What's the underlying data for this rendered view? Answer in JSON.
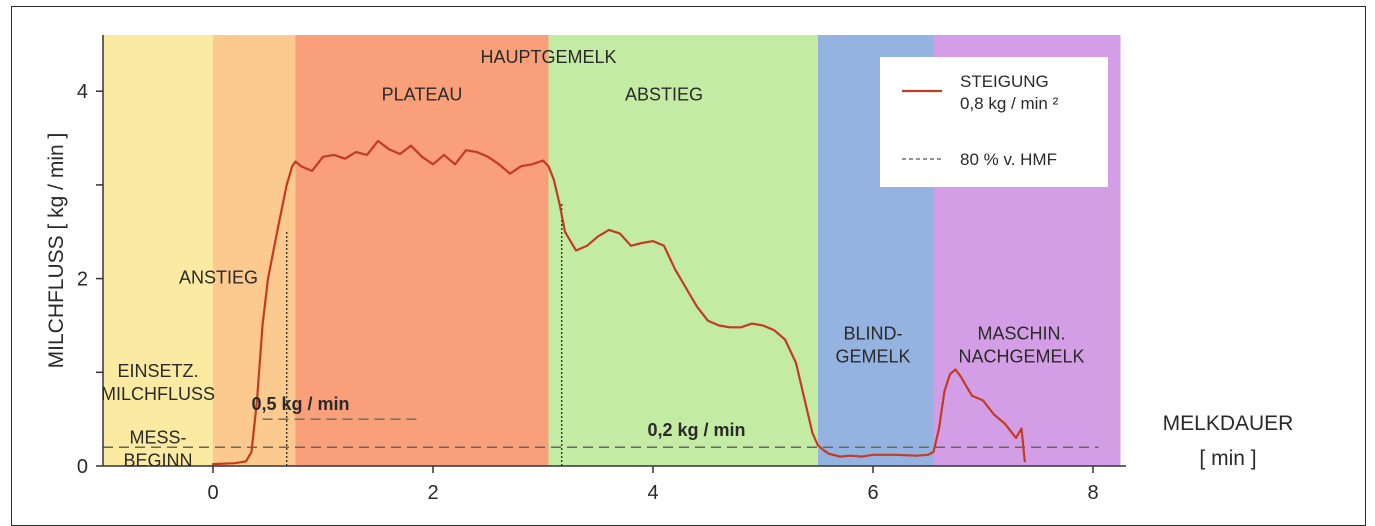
{
  "chart_data": {
    "type": "line",
    "xlabel": [
      "MELKDAUER",
      "[ min ]"
    ],
    "ylabel": "MILCHFLUSS [ kg / min ]",
    "xlim": [
      -1,
      8.3
    ],
    "ylim": [
      0,
      4.6
    ],
    "x_ticks": [
      0,
      2,
      4,
      6,
      8
    ],
    "x_tick_labels": [
      "0",
      "2",
      "4",
      "6",
      "8"
    ],
    "y_ticks": [
      0,
      1,
      2,
      3,
      4
    ],
    "y_tick_labels": [
      "0",
      "",
      "2",
      "",
      "4"
    ],
    "grid": false,
    "legend_position": "top-right",
    "legend": [
      {
        "style": "solid",
        "color": "#c23b22",
        "label_lines": [
          "STEIGUNG",
          "0,8 kg / min ²"
        ]
      },
      {
        "style": "dashed",
        "color": "#555555",
        "label_lines": [
          "80 % v. HMF"
        ]
      }
    ],
    "phases": [
      {
        "x0": -1.0,
        "x1": 0.0,
        "color": "#fbeaa2",
        "label_lines": []
      },
      {
        "x0": 0.0,
        "x1": 0.75,
        "color": "#fcc98e",
        "label_lines": [
          "ANSTIEG"
        ],
        "label_x": 0.05,
        "label_y": 1.95
      },
      {
        "x0": 0.75,
        "x1": 3.05,
        "color": "#f9a07a",
        "label_lines": [
          "PLATEAU"
        ],
        "label_x": 1.9,
        "label_y": 3.9
      },
      {
        "x0": 3.05,
        "x1": 5.5,
        "color": "#c3eba3",
        "label_lines": [
          "ABSTIEG"
        ],
        "label_x": 4.1,
        "label_y": 3.9
      },
      {
        "x0": 5.5,
        "x1": 6.55,
        "color": "#94b3e0",
        "label_lines": [
          "BLIND-",
          "GEMELK"
        ],
        "label_x": 6.0,
        "label_y": 1.35
      },
      {
        "x0": 6.55,
        "x1": 8.25,
        "color": "#d49ee6",
        "label_lines": [
          "MASCHIN.",
          "NACHGEMELK"
        ],
        "label_x": 7.35,
        "label_y": 1.35
      }
    ],
    "annotations": [
      {
        "lines": [
          "HAUPTGEMELK"
        ],
        "x": 3.05,
        "y": 4.3,
        "anchor": "middle",
        "bold": false
      },
      {
        "lines": [
          "EINSETZ.",
          "MILCHFLUSS"
        ],
        "x": -0.5,
        "y": 0.95,
        "anchor": "middle",
        "bold": false
      },
      {
        "lines": [
          "MESS-",
          "BEGINN"
        ],
        "x": -0.5,
        "y": 0.24,
        "anchor": "middle",
        "bold": false
      },
      {
        "lines": [
          "0,5 kg / min"
        ],
        "x": 0.35,
        "y": 0.6,
        "anchor": "start",
        "bold": true
      },
      {
        "lines": [
          "0,2 kg / min"
        ],
        "x": 3.95,
        "y": 0.32,
        "anchor": "start",
        "bold": true
      }
    ],
    "reference_lines": [
      {
        "orientation": "horizontal",
        "y": 0.5,
        "x0": 0.45,
        "x1": 1.9,
        "style": "dashed"
      },
      {
        "orientation": "horizontal",
        "y": 0.2,
        "x0": -1.0,
        "x1": 8.05,
        "style": "dashed"
      },
      {
        "orientation": "vertical",
        "x": 0.67,
        "y0": 0.0,
        "y1": 2.5,
        "style": "dotted"
      },
      {
        "orientation": "vertical",
        "x": 3.17,
        "y0": 0.0,
        "y1": 2.8,
        "style": "dotted"
      }
    ],
    "series": [
      {
        "color": "#c23b22",
        "x": [
          0.0,
          0.2,
          0.3,
          0.35,
          0.4,
          0.45,
          0.5,
          0.6,
          0.67,
          0.72,
          0.75,
          0.8,
          0.9,
          1.0,
          1.1,
          1.2,
          1.3,
          1.4,
          1.5,
          1.6,
          1.7,
          1.8,
          1.9,
          2.0,
          2.1,
          2.2,
          2.3,
          2.4,
          2.5,
          2.6,
          2.7,
          2.8,
          2.9,
          3.0,
          3.05,
          3.1,
          3.15,
          3.2,
          3.3,
          3.4,
          3.5,
          3.6,
          3.7,
          3.8,
          3.9,
          4.0,
          4.1,
          4.2,
          4.3,
          4.4,
          4.5,
          4.6,
          4.7,
          4.8,
          4.9,
          5.0,
          5.1,
          5.2,
          5.3,
          5.4,
          5.45,
          5.5,
          5.55,
          5.6,
          5.7,
          5.8,
          5.9,
          6.0,
          6.2,
          6.4,
          6.5,
          6.55,
          6.6,
          6.65,
          6.7,
          6.75,
          6.8,
          6.85,
          6.9,
          7.0,
          7.1,
          7.2,
          7.3,
          7.35,
          7.38
        ],
        "y": [
          0.02,
          0.03,
          0.05,
          0.15,
          0.7,
          1.5,
          2.0,
          2.6,
          3.0,
          3.2,
          3.25,
          3.2,
          3.15,
          3.3,
          3.32,
          3.28,
          3.35,
          3.32,
          3.47,
          3.38,
          3.33,
          3.42,
          3.3,
          3.22,
          3.32,
          3.22,
          3.37,
          3.35,
          3.3,
          3.22,
          3.12,
          3.2,
          3.22,
          3.26,
          3.2,
          3.05,
          2.8,
          2.5,
          2.3,
          2.35,
          2.45,
          2.52,
          2.48,
          2.35,
          2.38,
          2.4,
          2.35,
          2.1,
          1.9,
          1.7,
          1.55,
          1.5,
          1.48,
          1.48,
          1.52,
          1.5,
          1.45,
          1.35,
          1.1,
          0.6,
          0.35,
          0.22,
          0.17,
          0.13,
          0.1,
          0.11,
          0.1,
          0.12,
          0.12,
          0.11,
          0.12,
          0.15,
          0.4,
          0.8,
          0.98,
          1.03,
          0.95,
          0.85,
          0.75,
          0.7,
          0.55,
          0.45,
          0.3,
          0.4,
          0.05
        ]
      }
    ]
  }
}
